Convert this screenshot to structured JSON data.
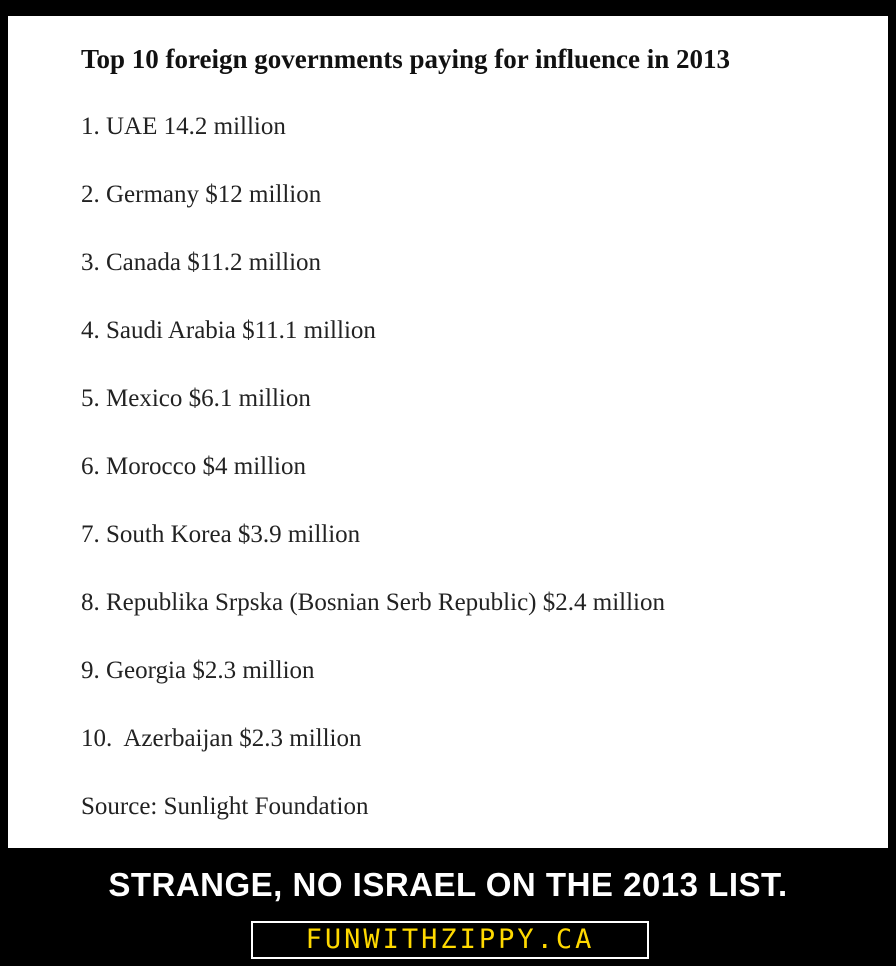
{
  "header": {
    "title": "Top 10 foreign governments paying for influence in 2013"
  },
  "list": {
    "items": [
      "1. UAE 14.2 million",
      "2. Germany $12 million",
      "3. Canada $11.2 million",
      "4. Saudi Arabia $11.1 million",
      "5. Mexico $6.1 million",
      "6. Morocco $4 million",
      "7. South Korea $3.9 million",
      "8. Republika Srpska (Bosnian Serb Republic) $2.4 million",
      "9. Georgia $2.3 million",
      "10.  Azerbaijan $2.3 million"
    ]
  },
  "source": "Source: Sunlight Foundation",
  "caption": "STRANGE, NO ISRAEL ON THE 2013 LIST.",
  "site": "FUNWITHZIPPY.CA"
}
